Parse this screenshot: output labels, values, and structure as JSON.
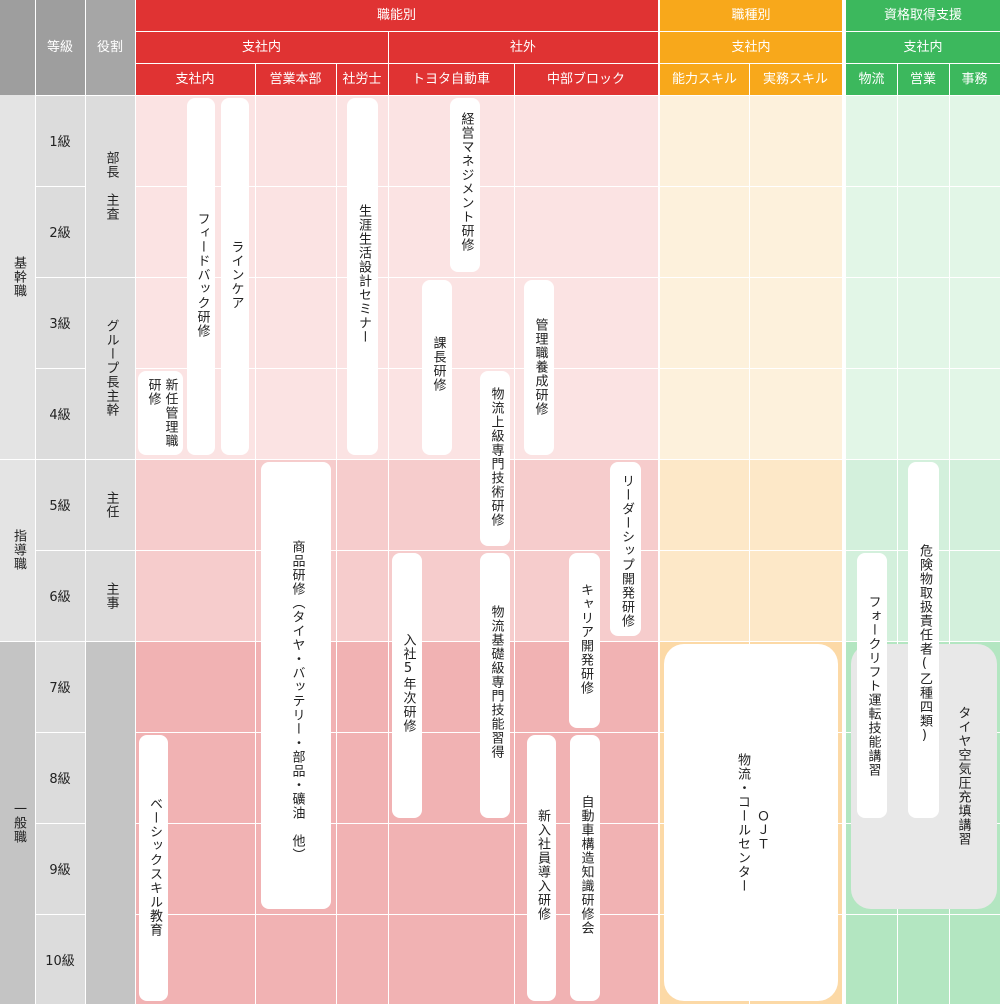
{
  "header": {
    "grade_label": "等級",
    "role_label": "役割",
    "groups": [
      {
        "label": "職能別",
        "color": "#e03333"
      },
      {
        "label": "職種別",
        "color": "#f8a81b"
      },
      {
        "label": "資格取得支援",
        "color": "#3cb85d"
      }
    ],
    "scopes": {
      "shokuno_inside": "支社内",
      "shokuno_outside": "社外",
      "shokushu_inside": "支社内",
      "shikaku_inside": "支社内"
    },
    "columns": [
      "支社内",
      "営業本部",
      "社労士",
      "トヨタ自動車",
      "中部ブロック",
      "能力スキル",
      "実務スキル",
      "物流",
      "営業",
      "事務"
    ]
  },
  "categories": [
    "基幹職",
    "指導職",
    "一般職"
  ],
  "grades": [
    "1級",
    "2級",
    "3級",
    "4級",
    "5級",
    "6級",
    "7級",
    "8級",
    "9級",
    "10級"
  ],
  "roles": [
    "部長　主査",
    "グループ長主幹",
    "主任",
    "主事"
  ],
  "trainings": {
    "new_manager": [
      "新任管理職",
      "研修"
    ],
    "feedback": "フィードバック研修",
    "linecare": "ラインケア",
    "basic_skill": "ベーシックスキル教育",
    "product": "商品研修（タイヤ・バッテリー・部品・礦油　他）",
    "life_plan": "生涯生活設計セミナー",
    "management": "経営マネジメント研修",
    "section_chief": "課長研修",
    "fifth_year": "入社5年次研修",
    "logistics_adv": "物流上級専門技術研修",
    "logistics_basic": "物流基礎級専門技能習得",
    "mgmt_training": "管理職養成研修",
    "leadership": "リーダーシップ開発研修",
    "career": "キャリア開発研修",
    "new_hire": "新入社員導入研修",
    "auto_structure": "自動車構造知識研修会",
    "ojt": [
      "ＯＪＴ",
      "物流・コールセンター"
    ],
    "forklift": "フォークリフト運転技能講習",
    "hazmat": "危険物取扱責任者(乙種四類)",
    "tire_air": "タイヤ空気圧充填講習"
  }
}
